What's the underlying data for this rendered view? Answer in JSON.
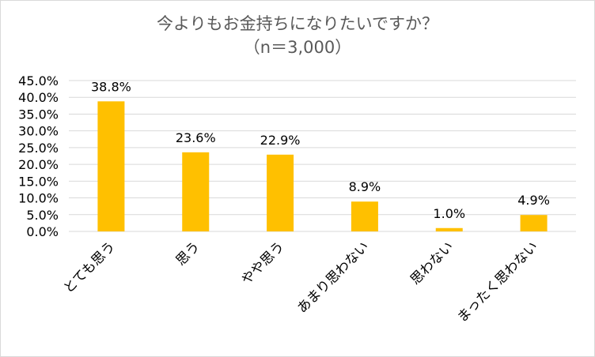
{
  "chart_data": {
    "type": "bar",
    "title": "今よりもお金持ちになりたいですか？",
    "subtitle": "（n＝3,000）",
    "categories": [
      "とても思う",
      "思う",
      "やや思う",
      "あまり思わない",
      "思わない",
      "まったく思わない"
    ],
    "values": [
      38.8,
      23.6,
      22.9,
      8.9,
      1.0,
      4.9
    ],
    "data_labels": [
      "38.8%",
      "23.6%",
      "22.9%",
      "8.9%",
      "1.0%",
      "4.9%"
    ],
    "yticks": [
      "0.0%",
      "5.0%",
      "10.0%",
      "15.0%",
      "20.0%",
      "25.0%",
      "30.0%",
      "35.0%",
      "40.0%",
      "45.0%"
    ],
    "ylim": [
      0,
      45
    ],
    "ystep": 5,
    "grid": true,
    "bar_color": "#FFC000",
    "grid_color": "#d9d9d9"
  }
}
